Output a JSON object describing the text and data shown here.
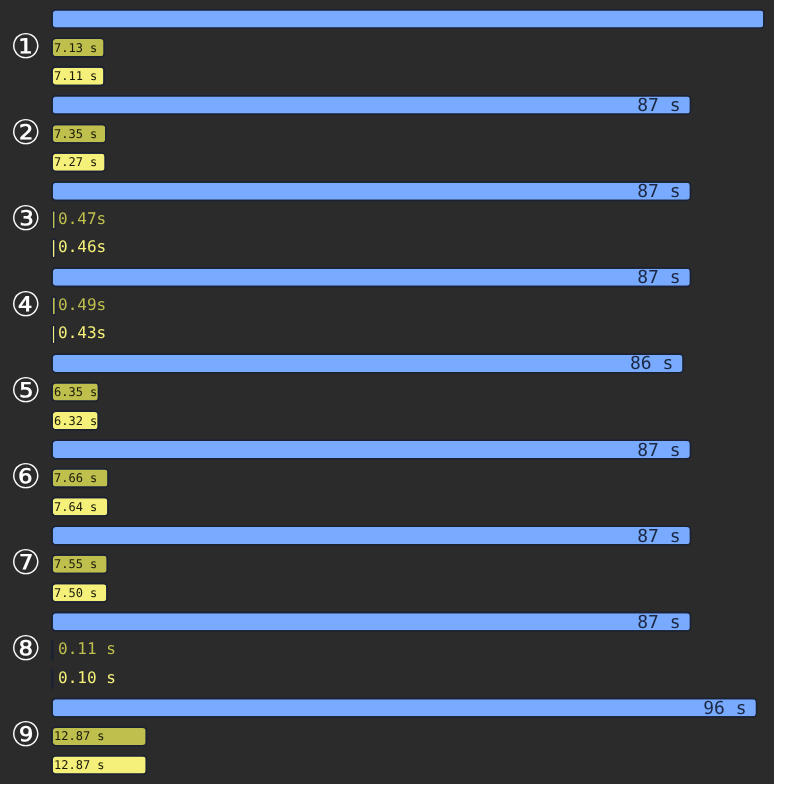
{
  "chart_data": {
    "type": "bar",
    "orientation": "horizontal",
    "categories": [
      "①",
      "②",
      "③",
      "④",
      "⑤",
      "⑥",
      "⑦",
      "⑧",
      "⑨"
    ],
    "series": [
      {
        "color": "#78aaff",
        "values": [
          97,
          87,
          87,
          87,
          86,
          87,
          87,
          87,
          96
        ],
        "value_labels": [
          null,
          "87 s",
          "87 s",
          "87 s",
          "86 s",
          "87 s",
          "87 s",
          "87 s",
          "96 s"
        ]
      },
      {
        "color": "#bfbf4e",
        "values": [
          7.13,
          7.35,
          0.47,
          0.49,
          6.35,
          7.66,
          7.55,
          0.11,
          12.87
        ],
        "value_labels": [
          "7.13 s",
          "7.35 s",
          "0.47s",
          "0.49s",
          "6.35 s",
          "7.66 s",
          "7.55 s",
          "0.11 s",
          "12.87 s"
        ]
      },
      {
        "color": "#f5f07a",
        "values": [
          7.11,
          7.27,
          0.46,
          0.43,
          6.32,
          7.64,
          7.5,
          0.1,
          12.87
        ],
        "value_labels": [
          "7.11 s",
          "7.27 s",
          "0.46s",
          "0.43s",
          "6.32 s",
          "7.64 s",
          "7.50 s",
          "0.10 s",
          "12.87 s"
        ]
      }
    ],
    "grid": false,
    "tick_labels": "y"
  }
}
